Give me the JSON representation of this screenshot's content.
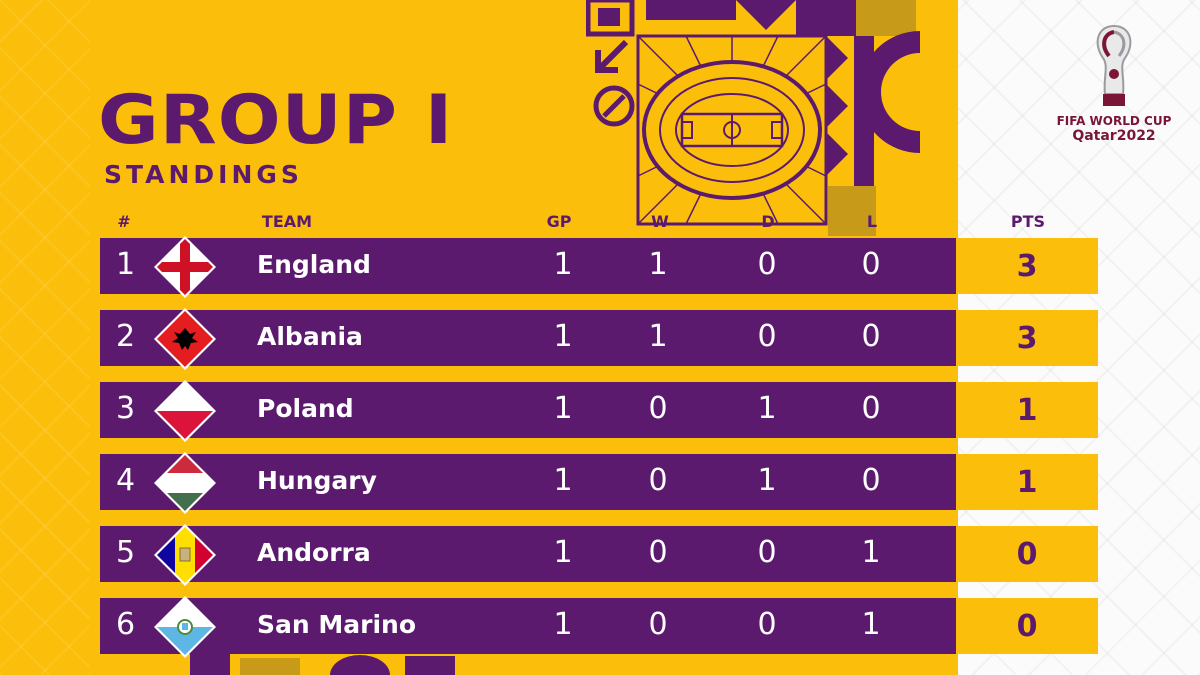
{
  "title": "GROUP I",
  "subtitle": "STANDINGS",
  "logo": {
    "line1": "FIFA WORLD CUP",
    "line2": "Qatar2022"
  },
  "headers": {
    "rank": "#",
    "team": "TEAM",
    "gp": "GP",
    "w": "W",
    "d": "D",
    "l": "L",
    "pts": "PTS"
  },
  "colors": {
    "background": "#fbbf0b",
    "row": "#5c1a6f",
    "text_light": "#ffffff",
    "text_dark": "#5c1a6f"
  },
  "rows": [
    {
      "rank": "1",
      "team": "England",
      "flag": "england-flag-icon",
      "gp": "1",
      "w": "1",
      "d": "0",
      "l": "0",
      "pts": "3"
    },
    {
      "rank": "2",
      "team": "Albania",
      "flag": "albania-flag-icon",
      "gp": "1",
      "w": "1",
      "d": "0",
      "l": "0",
      "pts": "3"
    },
    {
      "rank": "3",
      "team": "Poland",
      "flag": "poland-flag-icon",
      "gp": "1",
      "w": "0",
      "d": "1",
      "l": "0",
      "pts": "1"
    },
    {
      "rank": "4",
      "team": "Hungary",
      "flag": "hungary-flag-icon",
      "gp": "1",
      "w": "0",
      "d": "1",
      "l": "0",
      "pts": "1"
    },
    {
      "rank": "5",
      "team": "Andorra",
      "flag": "andorra-flag-icon",
      "gp": "1",
      "w": "0",
      "d": "0",
      "l": "1",
      "pts": "0"
    },
    {
      "rank": "6",
      "team": "San Marino",
      "flag": "san-marino-flag-icon",
      "gp": "1",
      "w": "0",
      "d": "0",
      "l": "1",
      "pts": "0"
    }
  ]
}
